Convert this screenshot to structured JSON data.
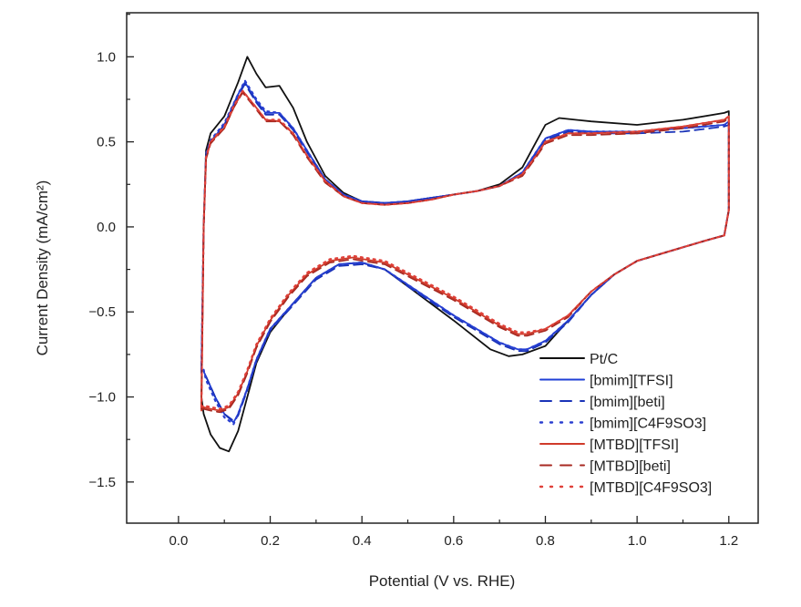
{
  "chart_data": {
    "type": "line",
    "title": "",
    "xlabel": "Potential (V vs. RHE)",
    "ylabel": "Current Density (mA/cm²)",
    "xlim": [
      -0.113,
      1.264
    ],
    "ylim": [
      -1.742,
      1.259
    ],
    "xticks": [
      0.0,
      0.2,
      0.4,
      0.6,
      0.8,
      1.0,
      1.2
    ],
    "xtick_labels": [
      "0.0",
      "0.2",
      "0.4",
      "0.6",
      "0.8",
      "1.0",
      "1.2"
    ],
    "yticks": [
      1.0,
      0.5,
      0.0,
      -0.5,
      -1.0,
      -1.5
    ],
    "ytick_labels": [
      "1.0",
      "0.5",
      "0.0",
      "−0.5",
      "−1.0",
      "−1.5"
    ],
    "grid": false,
    "legend_position": "bottom-right",
    "series": [
      {
        "name": "Pt/C",
        "color": "#111111",
        "style": "solid",
        "x": [
          0.05,
          0.055,
          0.06,
          0.07,
          0.1,
          0.13,
          0.15,
          0.17,
          0.19,
          0.22,
          0.25,
          0.28,
          0.32,
          0.36,
          0.4,
          0.45,
          0.5,
          0.55,
          0.6,
          0.65,
          0.7,
          0.75,
          0.78,
          0.8,
          0.83,
          0.9,
          1.0,
          1.1,
          1.19,
          1.2,
          1.2,
          1.19,
          1.15,
          1.1,
          1.0,
          0.95,
          0.9,
          0.85,
          0.8,
          0.75,
          0.72,
          0.68,
          0.6,
          0.5,
          0.45,
          0.4,
          0.35,
          0.3,
          0.25,
          0.2,
          0.17,
          0.15,
          0.13,
          0.11,
          0.09,
          0.07,
          0.055,
          0.05
        ],
        "y": [
          -1.0,
          0.0,
          0.45,
          0.55,
          0.65,
          0.85,
          1.0,
          0.9,
          0.82,
          0.83,
          0.7,
          0.5,
          0.3,
          0.2,
          0.15,
          0.14,
          0.15,
          0.17,
          0.19,
          0.21,
          0.25,
          0.35,
          0.5,
          0.6,
          0.64,
          0.62,
          0.6,
          0.63,
          0.67,
          0.68,
          0.1,
          -0.05,
          -0.08,
          -0.12,
          -0.2,
          -0.28,
          -0.4,
          -0.55,
          -0.7,
          -0.75,
          -0.76,
          -0.72,
          -0.55,
          -0.35,
          -0.25,
          -0.21,
          -0.22,
          -0.3,
          -0.45,
          -0.62,
          -0.8,
          -1.0,
          -1.2,
          -1.32,
          -1.3,
          -1.22,
          -1.1,
          -1.0
        ]
      },
      {
        "name": "[bmim][TFSI]",
        "color": "#1f3fd6",
        "style": "solid",
        "x": [
          0.05,
          0.055,
          0.06,
          0.07,
          0.1,
          0.13,
          0.145,
          0.17,
          0.19,
          0.22,
          0.25,
          0.28,
          0.32,
          0.36,
          0.4,
          0.45,
          0.5,
          0.55,
          0.6,
          0.65,
          0.7,
          0.75,
          0.78,
          0.8,
          0.85,
          0.9,
          1.0,
          1.1,
          1.19,
          1.2,
          1.2,
          1.19,
          1.15,
          1.1,
          1.0,
          0.95,
          0.9,
          0.85,
          0.8,
          0.76,
          0.74,
          0.7,
          0.6,
          0.5,
          0.45,
          0.4,
          0.35,
          0.3,
          0.25,
          0.2,
          0.17,
          0.15,
          0.13,
          0.12,
          0.1,
          0.08,
          0.06,
          0.055
        ],
        "y": [
          -0.85,
          0.0,
          0.42,
          0.5,
          0.6,
          0.78,
          0.85,
          0.74,
          0.67,
          0.67,
          0.58,
          0.45,
          0.28,
          0.19,
          0.15,
          0.14,
          0.15,
          0.17,
          0.19,
          0.21,
          0.24,
          0.32,
          0.44,
          0.52,
          0.57,
          0.56,
          0.56,
          0.58,
          0.6,
          0.62,
          0.1,
          -0.05,
          -0.08,
          -0.12,
          -0.2,
          -0.28,
          -0.4,
          -0.55,
          -0.67,
          -0.72,
          -0.72,
          -0.68,
          -0.52,
          -0.34,
          -0.25,
          -0.21,
          -0.22,
          -0.3,
          -0.45,
          -0.6,
          -0.78,
          -0.95,
          -1.1,
          -1.15,
          -1.1,
          -1.0,
          -0.88,
          -0.85
        ]
      },
      {
        "name": "[bmim][beti]",
        "color": "#1a33b8",
        "style": "dashed",
        "x": [
          0.05,
          0.055,
          0.06,
          0.07,
          0.1,
          0.13,
          0.145,
          0.17,
          0.19,
          0.22,
          0.25,
          0.28,
          0.32,
          0.36,
          0.4,
          0.45,
          0.5,
          0.55,
          0.6,
          0.65,
          0.7,
          0.75,
          0.78,
          0.8,
          0.85,
          0.9,
          1.0,
          1.1,
          1.19,
          1.2,
          1.2,
          1.19,
          1.15,
          1.1,
          1.0,
          0.95,
          0.9,
          0.85,
          0.8,
          0.76,
          0.74,
          0.7,
          0.6,
          0.5,
          0.45,
          0.4,
          0.35,
          0.3,
          0.25,
          0.2,
          0.17,
          0.15,
          0.13,
          0.12,
          0.1,
          0.08,
          0.06,
          0.055
        ],
        "y": [
          -0.86,
          0.0,
          0.42,
          0.5,
          0.6,
          0.77,
          0.84,
          0.73,
          0.66,
          0.66,
          0.57,
          0.44,
          0.27,
          0.18,
          0.15,
          0.14,
          0.15,
          0.17,
          0.19,
          0.21,
          0.24,
          0.31,
          0.43,
          0.51,
          0.56,
          0.55,
          0.55,
          0.56,
          0.59,
          0.6,
          0.1,
          -0.05,
          -0.08,
          -0.12,
          -0.2,
          -0.28,
          -0.4,
          -0.56,
          -0.68,
          -0.73,
          -0.73,
          -0.69,
          -0.53,
          -0.35,
          -0.25,
          -0.22,
          -0.23,
          -0.31,
          -0.46,
          -0.61,
          -0.79,
          -0.96,
          -1.11,
          -1.14,
          -1.1,
          -1.0,
          -0.88,
          -0.86
        ]
      },
      {
        "name": "[bmim][C4F9SO3]",
        "color": "#2a3fd0",
        "style": "dotted",
        "x": [
          0.05,
          0.055,
          0.06,
          0.07,
          0.1,
          0.13,
          0.145,
          0.17,
          0.19,
          0.22,
          0.25,
          0.28,
          0.32,
          0.36,
          0.4,
          0.45,
          0.5,
          0.55,
          0.6,
          0.65,
          0.7,
          0.75,
          0.78,
          0.8,
          0.85,
          0.9,
          1.0,
          1.1,
          1.19,
          1.2,
          1.2,
          1.19,
          1.15,
          1.1,
          1.0,
          0.95,
          0.9,
          0.85,
          0.8,
          0.76,
          0.74,
          0.7,
          0.6,
          0.5,
          0.45,
          0.4,
          0.35,
          0.3,
          0.25,
          0.2,
          0.17,
          0.15,
          0.13,
          0.12,
          0.1,
          0.08,
          0.06,
          0.055
        ],
        "y": [
          -0.84,
          0.0,
          0.43,
          0.51,
          0.61,
          0.78,
          0.86,
          0.75,
          0.68,
          0.67,
          0.58,
          0.45,
          0.28,
          0.19,
          0.15,
          0.14,
          0.15,
          0.17,
          0.19,
          0.21,
          0.24,
          0.32,
          0.44,
          0.52,
          0.57,
          0.56,
          0.56,
          0.58,
          0.6,
          0.61,
          0.1,
          -0.05,
          -0.08,
          -0.12,
          -0.2,
          -0.28,
          -0.4,
          -0.55,
          -0.67,
          -0.72,
          -0.72,
          -0.68,
          -0.52,
          -0.34,
          -0.25,
          -0.21,
          -0.22,
          -0.3,
          -0.45,
          -0.6,
          -0.78,
          -0.95,
          -1.1,
          -1.16,
          -1.12,
          -1.02,
          -0.9,
          -0.84
        ]
      },
      {
        "name": "[MTBD][TFSI]",
        "color": "#d03a2a",
        "style": "solid",
        "x": [
          0.05,
          0.055,
          0.06,
          0.07,
          0.1,
          0.12,
          0.14,
          0.17,
          0.19,
          0.22,
          0.25,
          0.28,
          0.32,
          0.36,
          0.4,
          0.45,
          0.5,
          0.55,
          0.6,
          0.65,
          0.7,
          0.75,
          0.78,
          0.8,
          0.85,
          0.9,
          1.0,
          1.1,
          1.19,
          1.2,
          1.2,
          1.19,
          1.15,
          1.1,
          1.0,
          0.95,
          0.9,
          0.85,
          0.8,
          0.76,
          0.74,
          0.7,
          0.6,
          0.5,
          0.45,
          0.38,
          0.33,
          0.28,
          0.24,
          0.2,
          0.17,
          0.15,
          0.13,
          0.11,
          0.09,
          0.07,
          0.055,
          0.05
        ],
        "y": [
          -1.08,
          0.0,
          0.4,
          0.5,
          0.58,
          0.7,
          0.8,
          0.7,
          0.63,
          0.62,
          0.55,
          0.42,
          0.27,
          0.18,
          0.14,
          0.13,
          0.14,
          0.16,
          0.19,
          0.21,
          0.24,
          0.31,
          0.42,
          0.5,
          0.55,
          0.55,
          0.56,
          0.59,
          0.63,
          0.65,
          0.1,
          -0.05,
          -0.08,
          -0.12,
          -0.2,
          -0.28,
          -0.38,
          -0.52,
          -0.6,
          -0.63,
          -0.63,
          -0.58,
          -0.42,
          -0.28,
          -0.21,
          -0.18,
          -0.2,
          -0.28,
          -0.4,
          -0.55,
          -0.7,
          -0.85,
          -0.98,
          -1.06,
          -1.08,
          -1.07,
          -1.06,
          -1.08
        ]
      },
      {
        "name": "[MTBD][beti]",
        "color": "#a82a22",
        "style": "dashed",
        "x": [
          0.05,
          0.055,
          0.06,
          0.07,
          0.1,
          0.12,
          0.14,
          0.17,
          0.19,
          0.22,
          0.25,
          0.28,
          0.32,
          0.36,
          0.4,
          0.45,
          0.5,
          0.55,
          0.6,
          0.65,
          0.7,
          0.75,
          0.78,
          0.8,
          0.85,
          0.9,
          1.0,
          1.1,
          1.19,
          1.2,
          1.2,
          1.19,
          1.15,
          1.1,
          1.0,
          0.95,
          0.9,
          0.85,
          0.8,
          0.76,
          0.74,
          0.7,
          0.6,
          0.5,
          0.45,
          0.38,
          0.33,
          0.28,
          0.24,
          0.2,
          0.17,
          0.15,
          0.13,
          0.11,
          0.09,
          0.07,
          0.055,
          0.05
        ],
        "y": [
          -1.07,
          0.0,
          0.4,
          0.49,
          0.58,
          0.7,
          0.79,
          0.69,
          0.62,
          0.62,
          0.54,
          0.41,
          0.26,
          0.18,
          0.14,
          0.13,
          0.14,
          0.16,
          0.19,
          0.21,
          0.24,
          0.3,
          0.41,
          0.49,
          0.54,
          0.54,
          0.55,
          0.58,
          0.62,
          0.64,
          0.1,
          -0.05,
          -0.08,
          -0.12,
          -0.2,
          -0.28,
          -0.38,
          -0.53,
          -0.61,
          -0.64,
          -0.64,
          -0.59,
          -0.43,
          -0.29,
          -0.22,
          -0.19,
          -0.21,
          -0.29,
          -0.41,
          -0.56,
          -0.71,
          -0.86,
          -0.99,
          -1.07,
          -1.09,
          -1.08,
          -1.07,
          -1.07
        ]
      },
      {
        "name": "[MTBD][C4F9SO3]",
        "color": "#e0413a",
        "style": "dotted",
        "x": [
          0.05,
          0.055,
          0.06,
          0.07,
          0.1,
          0.12,
          0.14,
          0.17,
          0.19,
          0.22,
          0.25,
          0.28,
          0.32,
          0.36,
          0.4,
          0.45,
          0.5,
          0.55,
          0.6,
          0.65,
          0.7,
          0.75,
          0.78,
          0.8,
          0.85,
          0.9,
          1.0,
          1.1,
          1.19,
          1.2,
          1.2,
          1.19,
          1.15,
          1.1,
          1.0,
          0.95,
          0.9,
          0.85,
          0.8,
          0.76,
          0.74,
          0.7,
          0.6,
          0.5,
          0.45,
          0.38,
          0.33,
          0.28,
          0.24,
          0.2,
          0.17,
          0.15,
          0.13,
          0.11,
          0.09,
          0.07,
          0.055,
          0.05
        ],
        "y": [
          -1.06,
          0.0,
          0.41,
          0.5,
          0.59,
          0.71,
          0.8,
          0.7,
          0.63,
          0.63,
          0.55,
          0.42,
          0.27,
          0.18,
          0.14,
          0.13,
          0.14,
          0.16,
          0.19,
          0.21,
          0.24,
          0.31,
          0.42,
          0.5,
          0.55,
          0.55,
          0.56,
          0.59,
          0.63,
          0.65,
          0.1,
          -0.05,
          -0.08,
          -0.12,
          -0.2,
          -0.28,
          -0.38,
          -0.52,
          -0.6,
          -0.62,
          -0.62,
          -0.57,
          -0.41,
          -0.27,
          -0.2,
          -0.17,
          -0.19,
          -0.27,
          -0.39,
          -0.54,
          -0.69,
          -0.84,
          -0.97,
          -1.05,
          -1.07,
          -1.06,
          -1.05,
          -1.06
        ]
      }
    ]
  }
}
